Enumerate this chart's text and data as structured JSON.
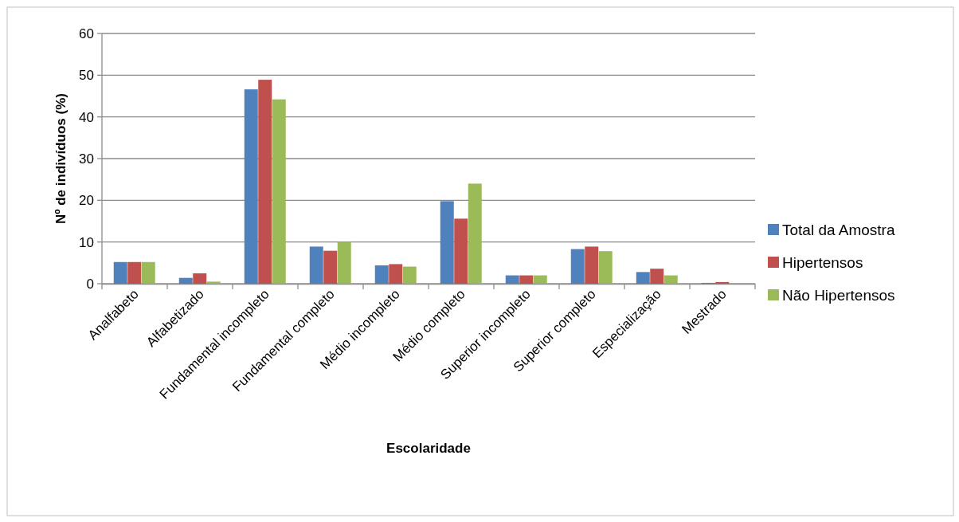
{
  "chart_data": {
    "type": "bar",
    "xlabel": "Escolaridade",
    "ylabel": "Nº de indivíduos (%)",
    "categories": [
      "Analfabeto",
      "Alfabetizado",
      "Fundamental incompleto",
      "Fundamental completo",
      "Médio incompleto",
      "Médio completo",
      "Superior incompleto",
      "Superior completo",
      "Especialização",
      "Mestrado"
    ],
    "series": [
      {
        "name": "Total da Amostra",
        "color": "#4f81bd",
        "values": [
          5.2,
          1.4,
          46.6,
          8.9,
          4.4,
          19.8,
          2.0,
          8.3,
          2.8,
          0.2
        ]
      },
      {
        "name": "Hipertensos",
        "color": "#c0504d",
        "values": [
          5.2,
          2.5,
          48.9,
          7.9,
          4.7,
          15.6,
          2.0,
          8.9,
          3.6,
          0.4
        ]
      },
      {
        "name": "Não Hipertensos",
        "color": "#9bbb59",
        "values": [
          5.2,
          0.5,
          44.2,
          10.0,
          4.1,
          24.0,
          2.0,
          7.8,
          2.0,
          0
        ]
      }
    ],
    "ylim": [
      0,
      60
    ],
    "yticks": [
      0,
      10,
      20,
      30,
      40,
      50,
      60
    ],
    "grid": "y",
    "legend": "right"
  }
}
